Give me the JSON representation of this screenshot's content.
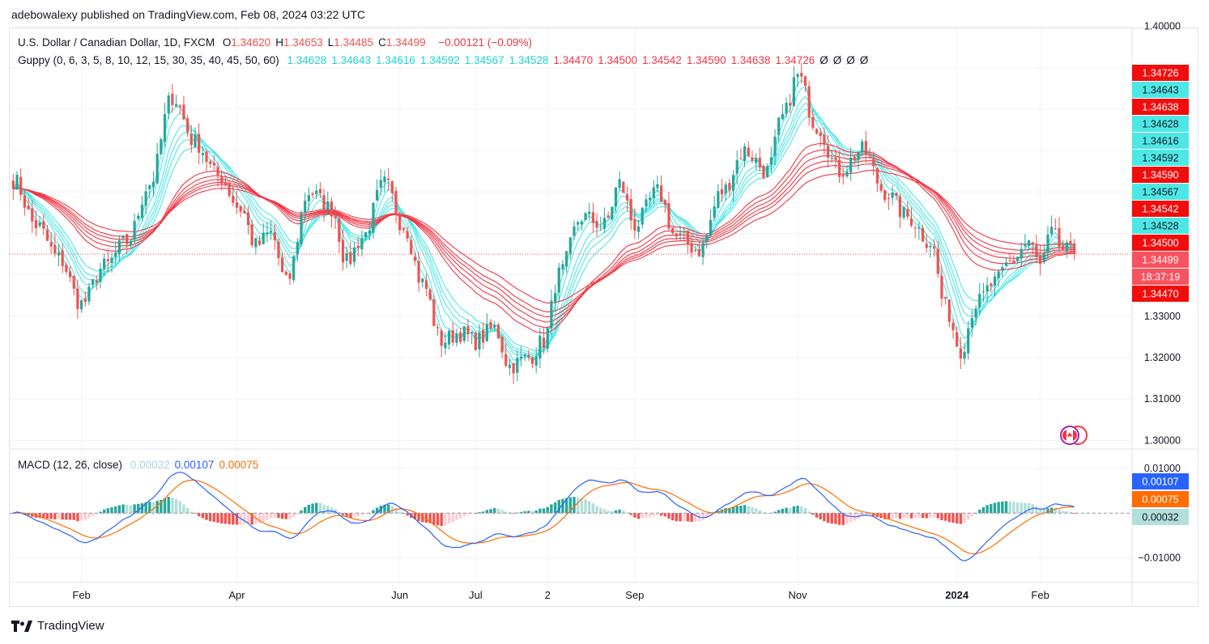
{
  "header": {
    "publisher": "adebowalexy published on TradingView.com, Feb 08, 2024 03:22 UTC"
  },
  "legend": {
    "symbol": "U.S. Dollar / Canadian Dollar, 1D, FXCM",
    "ohlc": [
      {
        "label": "O",
        "value": "1.34620"
      },
      {
        "label": "H",
        "value": "1.34653"
      },
      {
        "label": "L",
        "value": "1.34485"
      },
      {
        "label": "C",
        "value": "1.34499"
      }
    ],
    "change": "−0.00121 (−0.09%)",
    "guppy_title": "Guppy (0, 6, 3, 5, 8, 10, 12, 15, 30, 35, 40, 45, 50, 60)",
    "guppy_values": [
      "1.34628",
      "1.34643",
      "1.34616",
      "1.34592",
      "1.34567",
      "1.34528",
      "1.34470",
      "1.34500",
      "1.34542",
      "1.34590",
      "1.34638",
      "1.34726",
      "Ø",
      "Ø",
      "Ø",
      "Ø"
    ],
    "macd_title": "MACD (12, 26, close)",
    "macd_values": [
      "0.00032",
      "0.00107",
      "0.00075"
    ]
  },
  "colors": {
    "up": "#26a69a",
    "down": "#ef5350",
    "fast": "#4de8e6",
    "slow": "#f23645",
    "macd": "#2962ff",
    "signal": "#ff6d00",
    "hist_up": "#26a69a",
    "hist_up_light": "#b2dfdb",
    "hist_dn": "#ef5350",
    "hist_dn_light": "#ffcdd2",
    "grid": "#f0f3fa",
    "axis_text": "#131722"
  },
  "chart_data": {
    "type": "candlestick",
    "price_axis": {
      "ticks": [
        "1.40000",
        "1.33000",
        "1.32000",
        "1.31000",
        "1.30000"
      ],
      "ylim": [
        1.2985,
        1.4005
      ]
    },
    "macd_axis": {
      "ticks": [
        "0.01000",
        "−0.01000"
      ],
      "ylim": [
        -0.0146,
        0.0138
      ]
    },
    "x_ticks": [
      {
        "label": "Feb",
        "i": 18
      },
      {
        "label": "Apr",
        "i": 59
      },
      {
        "label": "Jun",
        "i": 102
      },
      {
        "label": "Jul",
        "i": 122
      },
      {
        "label": "2",
        "i": 141
      },
      {
        "label": "Sep",
        "i": 164
      },
      {
        "label": "Nov",
        "i": 207
      },
      {
        "label": "2024",
        "i": 249
      },
      {
        "label": "Feb",
        "i": 271
      }
    ],
    "price_labels": [
      {
        "text": "1.34726",
        "color": "red"
      },
      {
        "text": "1.34643",
        "color": "cyan"
      },
      {
        "text": "1.34638",
        "color": "red"
      },
      {
        "text": "1.34628",
        "color": "cyan"
      },
      {
        "text": "1.34616",
        "color": "cyan"
      },
      {
        "text": "1.34592",
        "color": "cyan"
      },
      {
        "text": "1.34590",
        "color": "red"
      },
      {
        "text": "1.34567",
        "color": "cyan"
      },
      {
        "text": "1.34542",
        "color": "red"
      },
      {
        "text": "1.34528",
        "color": "cyan"
      },
      {
        "text": "1.34500",
        "color": "red"
      },
      {
        "text": "1.34499",
        "color": "last"
      },
      {
        "text": "18:37:19",
        "color": "last"
      },
      {
        "text": "1.34470",
        "color": "red"
      }
    ],
    "macd_labels": [
      {
        "text": "0.00107",
        "color": "blue"
      },
      {
        "text": "0.00075",
        "color": "orange"
      },
      {
        "text": "0.00032",
        "color": "teal"
      }
    ],
    "last_close": 1.34499,
    "anchors": [
      [
        0,
        1.363
      ],
      [
        6,
        1.352
      ],
      [
        12,
        1.344
      ],
      [
        18,
        1.333
      ],
      [
        24,
        1.342
      ],
      [
        30,
        1.348
      ],
      [
        36,
        1.362
      ],
      [
        42,
        1.383
      ],
      [
        48,
        1.372
      ],
      [
        54,
        1.364
      ],
      [
        60,
        1.356
      ],
      [
        64,
        1.347
      ],
      [
        68,
        1.35
      ],
      [
        72,
        1.338
      ],
      [
        78,
        1.36
      ],
      [
        84,
        1.356
      ],
      [
        88,
        1.343
      ],
      [
        92,
        1.349
      ],
      [
        98,
        1.362
      ],
      [
        103,
        1.352
      ],
      [
        108,
        1.338
      ],
      [
        113,
        1.324
      ],
      [
        118,
        1.326
      ],
      [
        122,
        1.324
      ],
      [
        127,
        1.327
      ],
      [
        131,
        1.318
      ],
      [
        136,
        1.32
      ],
      [
        140,
        1.324
      ],
      [
        144,
        1.34
      ],
      [
        150,
        1.354
      ],
      [
        156,
        1.352
      ],
      [
        160,
        1.362
      ],
      [
        164,
        1.352
      ],
      [
        170,
        1.36
      ],
      [
        175,
        1.349
      ],
      [
        181,
        1.346
      ],
      [
        187,
        1.36
      ],
      [
        193,
        1.37
      ],
      [
        199,
        1.365
      ],
      [
        203,
        1.378
      ],
      [
        207,
        1.388
      ],
      [
        212,
        1.376
      ],
      [
        218,
        1.365
      ],
      [
        224,
        1.37
      ],
      [
        230,
        1.36
      ],
      [
        236,
        1.354
      ],
      [
        242,
        1.348
      ],
      [
        246,
        1.332
      ],
      [
        250,
        1.322
      ],
      [
        254,
        1.333
      ],
      [
        259,
        1.338
      ],
      [
        263,
        1.343
      ],
      [
        268,
        1.348
      ],
      [
        271,
        1.342
      ],
      [
        274,
        1.35
      ],
      [
        277,
        1.346
      ],
      [
        280,
        1.345
      ]
    ],
    "n_bars": 281
  },
  "footer": {
    "brand": "TradingView"
  }
}
